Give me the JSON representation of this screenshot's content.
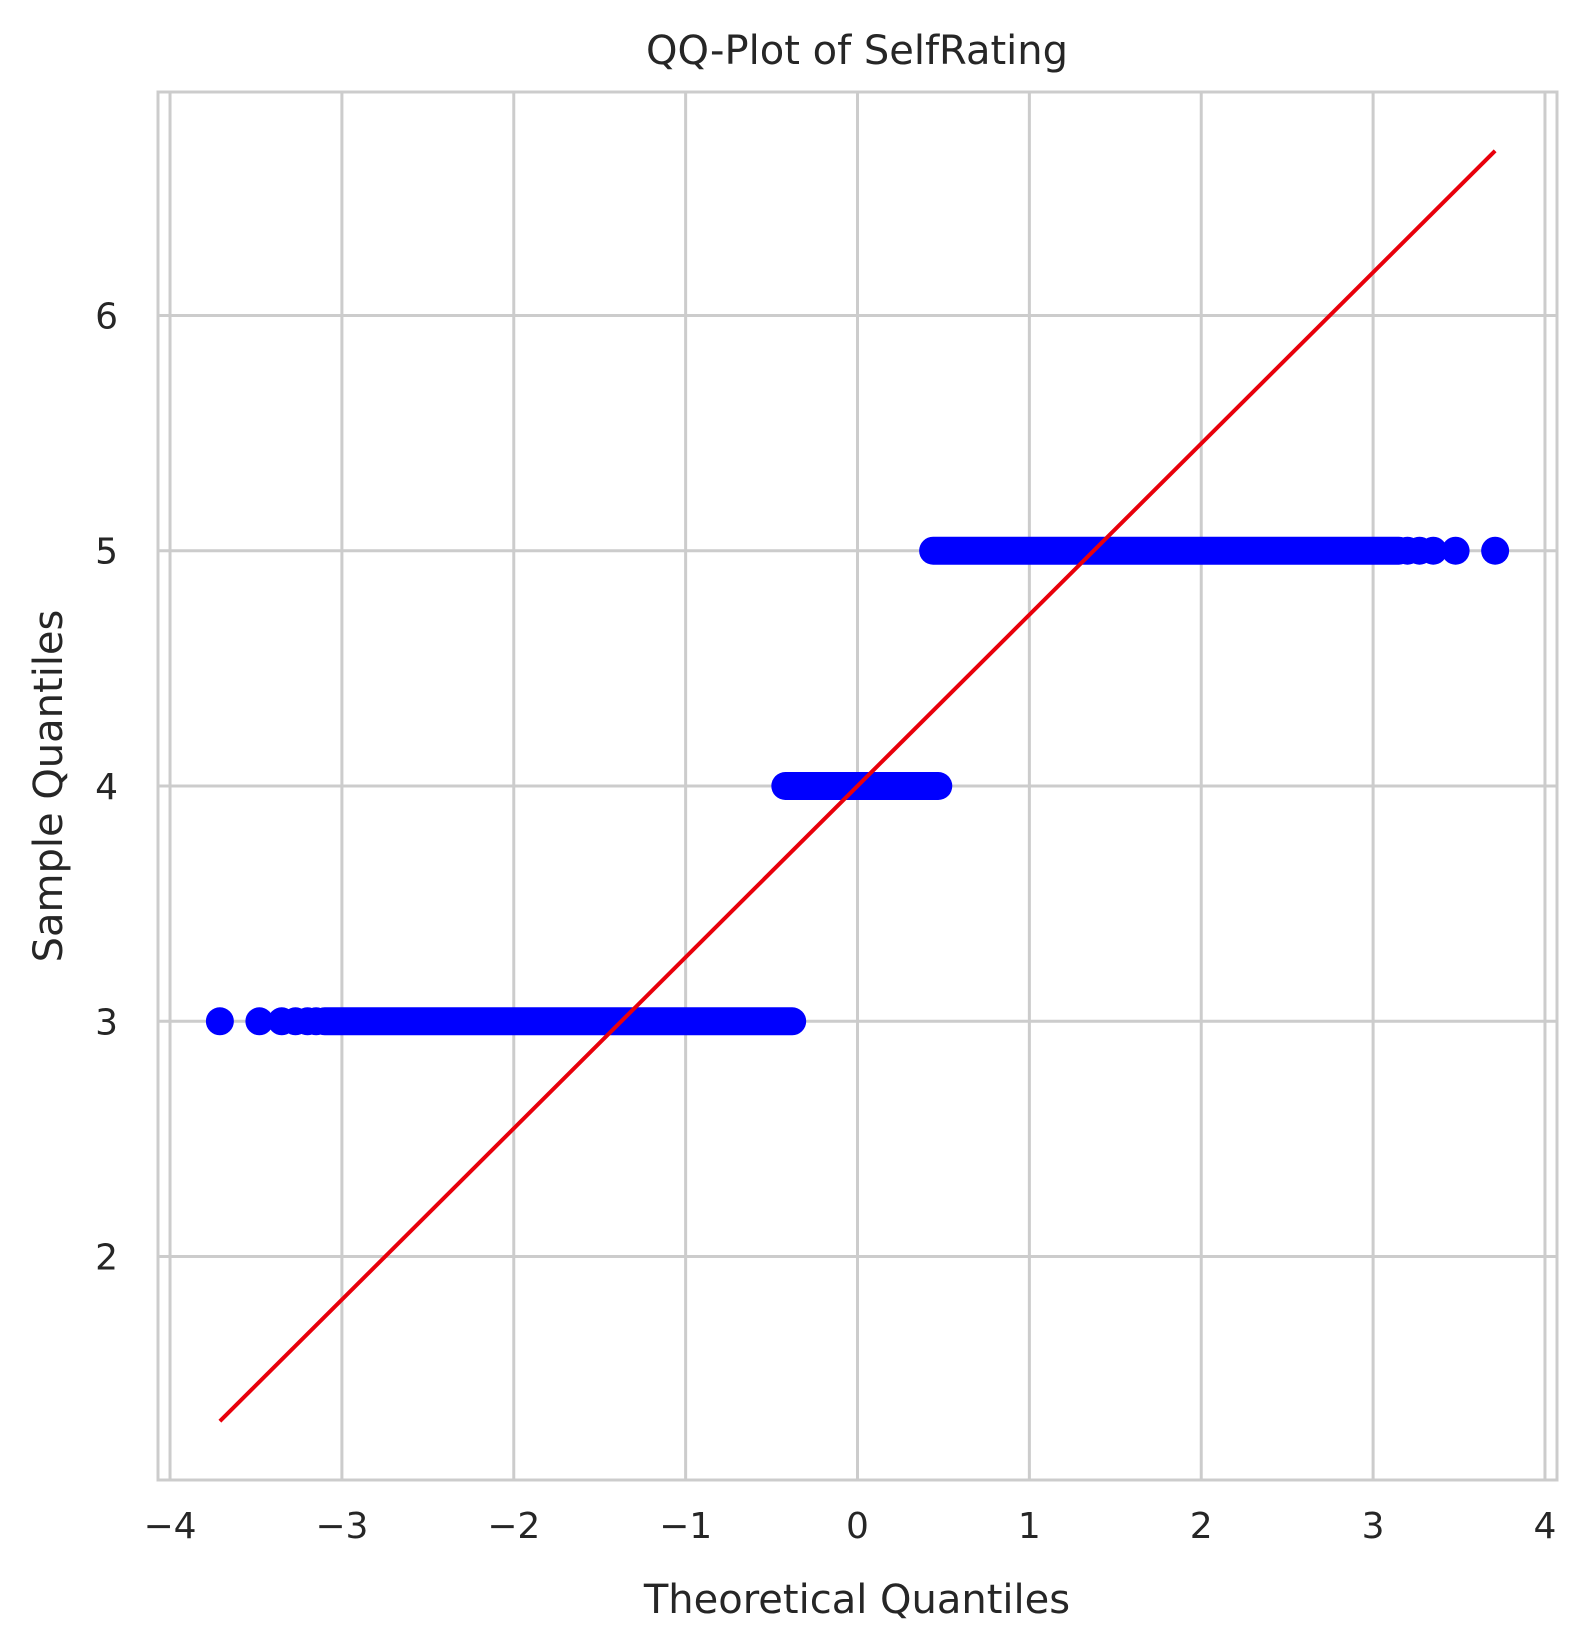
{
  "chart_data": {
    "type": "scatter",
    "title": "QQ-Plot of SelfRating",
    "xlabel": "Theoretical Quantiles",
    "ylabel": "Sample Quantiles",
    "xlim": [
      -4.07,
      4.07
    ],
    "ylim": [
      1.05,
      6.95
    ],
    "x_ticks": [
      -4,
      -3,
      -2,
      -1,
      0,
      1,
      2,
      3,
      4
    ],
    "x_tick_labels": [
      "−4",
      "−3",
      "−2",
      "−1",
      "0",
      "1",
      "2",
      "3",
      "4"
    ],
    "y_ticks": [
      2,
      3,
      4,
      5,
      6
    ],
    "y_tick_labels": [
      "2",
      "3",
      "4",
      "5",
      "6"
    ],
    "grid": true,
    "legend": "none",
    "series": [
      {
        "kind": "points",
        "color": "#0000ff",
        "segments": [
          {
            "y": 3,
            "x_start": -3.1,
            "x_end": -0.38,
            "isolated_x": [
              -3.71,
              -3.48,
              -3.35,
              -3.27,
              -3.2,
              -3.15
            ]
          },
          {
            "y": 4,
            "x_start": -0.42,
            "x_end": 0.47,
            "isolated_x": []
          },
          {
            "y": 5,
            "x_start": 0.44,
            "x_end": 3.15,
            "isolated_x": [
              3.2,
              3.27,
              3.35,
              3.48,
              3.71
            ]
          }
        ]
      },
      {
        "kind": "line",
        "color": "#e8000b",
        "x": [
          -3.71,
          3.71
        ],
        "y": [
          1.3,
          6.7
        ]
      }
    ]
  }
}
